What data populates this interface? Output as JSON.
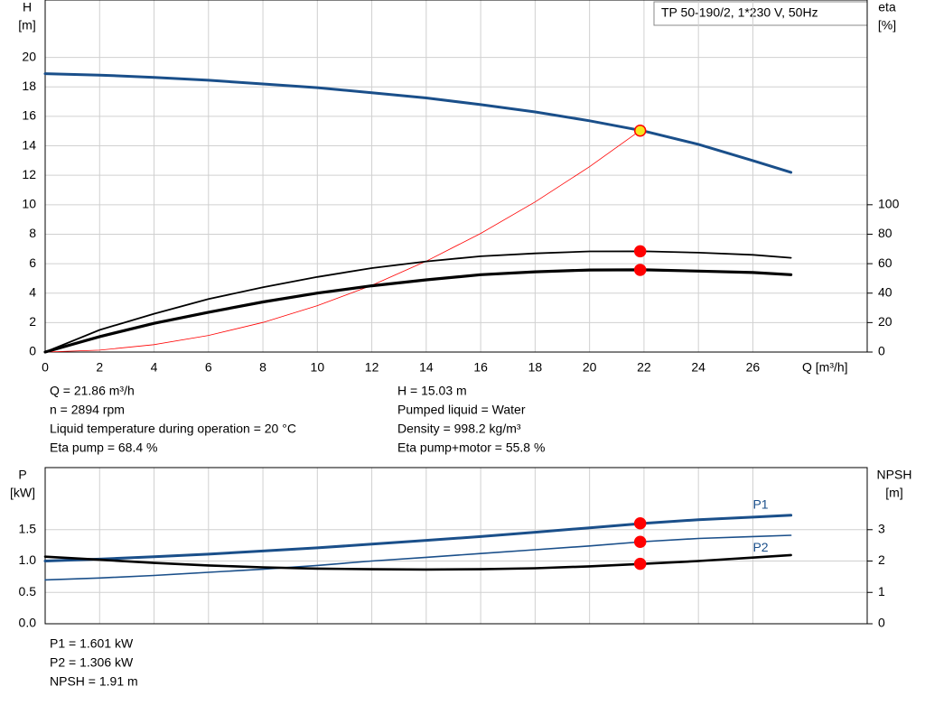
{
  "chart_data": [
    {
      "type": "line",
      "title": "TP 50-190/2, 1*230 V, 50Hz",
      "y_label": "H",
      "y_unit": "[m]",
      "y2_label": "eta",
      "y2_unit": "[%]",
      "x_label": "Q [m³/h]",
      "x": [
        0,
        2,
        4,
        6,
        8,
        10,
        12,
        14,
        16,
        18,
        20,
        22,
        24,
        26,
        27.4
      ],
      "xlim": [
        0,
        30.2
      ],
      "xticks": [
        0,
        2,
        4,
        6,
        8,
        10,
        12,
        14,
        16,
        18,
        20,
        22,
        24,
        26
      ],
      "ylim": [
        0,
        23.9
      ],
      "yticks": [
        0,
        2,
        4,
        6,
        8,
        10,
        12,
        14,
        16,
        18,
        20
      ],
      "y2lim": [
        0,
        239
      ],
      "y2ticks": [
        0,
        20,
        40,
        60,
        80,
        100
      ],
      "grid": true,
      "show_xtick_labels": true,
      "operating_x": 21.86,
      "series": [
        {
          "color": "#1a4f8a",
          "width": 3,
          "values": [
            18.9,
            18.8,
            18.65,
            18.45,
            18.2,
            17.95,
            17.6,
            17.25,
            16.8,
            16.3,
            15.7,
            15.0,
            14.1,
            13.0,
            12.2
          ],
          "operating_value": 15.03,
          "marker_color": "#f5e61e"
        },
        {
          "color": "#ff0000",
          "width": 0.8,
          "values": [
            0,
            0.13,
            0.5,
            1.13,
            2.01,
            3.15,
            4.53,
            6.17,
            8.05,
            10.19,
            12.58,
            15.22,
            null,
            null,
            null
          ]
        },
        {
          "axis": "y2",
          "color": "#000000",
          "width": 1.8,
          "values": [
            0,
            15,
            26,
            36,
            44,
            51,
            57,
            61.5,
            65,
            67,
            68.3,
            68.4,
            67.5,
            66,
            64
          ],
          "operating_value": 68.4,
          "marker_color": "#ff0000"
        },
        {
          "axis": "y2",
          "color": "#000000",
          "width": 3.2,
          "values": [
            0,
            10.5,
            19.5,
            27,
            34,
            40,
            45,
            49,
            52.5,
            54.5,
            55.7,
            55.8,
            55,
            54,
            52.5
          ],
          "operating_value": 55.8,
          "marker_color": "#ff0000"
        }
      ],
      "annotations": [
        [
          "Q = 21.86 m³/h",
          "n = 2894 rpm",
          "Liquid temperature during operation = 20 °C",
          "Eta pump = 68.4 %"
        ],
        [
          "H = 15.03 m",
          "Pumped liquid = Water",
          "Density = 998.2 kg/m³",
          "Eta pump+motor = 55.8 %"
        ]
      ]
    },
    {
      "type": "line",
      "y_label": "P",
      "y_unit": "[kW]",
      "y2_label": "NPSH",
      "y2_unit": "[m]",
      "x": [
        0,
        2,
        4,
        6,
        8,
        10,
        12,
        14,
        16,
        18,
        20,
        22,
        24,
        26,
        27.4
      ],
      "xlim": [
        0,
        30.2
      ],
      "xticks": [
        0,
        2,
        4,
        6,
        8,
        10,
        12,
        14,
        16,
        18,
        20,
        22,
        24,
        26
      ],
      "ylim": [
        0,
        2.49
      ],
      "yticks": [
        {
          "value": 0,
          "label": "0.0"
        },
        0.5,
        {
          "value": 1,
          "label": "1.0"
        },
        1.5
      ],
      "y2lim": [
        0,
        4.98
      ],
      "y2ticks": [
        0,
        1,
        2,
        3
      ],
      "grid": true,
      "show_xtick_labels": false,
      "operating_x": 21.86,
      "series": [
        {
          "name": "P1",
          "name_pos": "above",
          "color": "#1a4f8a",
          "width": 3,
          "values": [
            1.0,
            1.03,
            1.07,
            1.11,
            1.16,
            1.21,
            1.27,
            1.33,
            1.39,
            1.46,
            1.53,
            1.6,
            1.66,
            1.7,
            1.73
          ],
          "operating_value": 1.601,
          "marker_color": "#ff0000"
        },
        {
          "name": "P2",
          "name_pos": "below",
          "color": "#1a4f8a",
          "width": 1.6,
          "values": [
            0.7,
            0.73,
            0.77,
            0.82,
            0.87,
            0.93,
            1.0,
            1.06,
            1.12,
            1.18,
            1.24,
            1.31,
            1.36,
            1.39,
            1.41
          ],
          "operating_value": 1.306,
          "marker_color": "#ff0000"
        },
        {
          "axis": "y2",
          "color": "#000000",
          "width": 2.6,
          "values": [
            2.14,
            2.04,
            1.94,
            1.86,
            1.8,
            1.76,
            1.74,
            1.73,
            1.74,
            1.77,
            1.83,
            1.91,
            2.0,
            2.11,
            2.19
          ],
          "operating_value": 1.91,
          "marker_color": "#ff0000"
        }
      ],
      "annotations": [
        [
          "P1 = 1.601 kW",
          "P2 = 1.306 kW",
          "NPSH = 1.91 m"
        ]
      ]
    }
  ]
}
